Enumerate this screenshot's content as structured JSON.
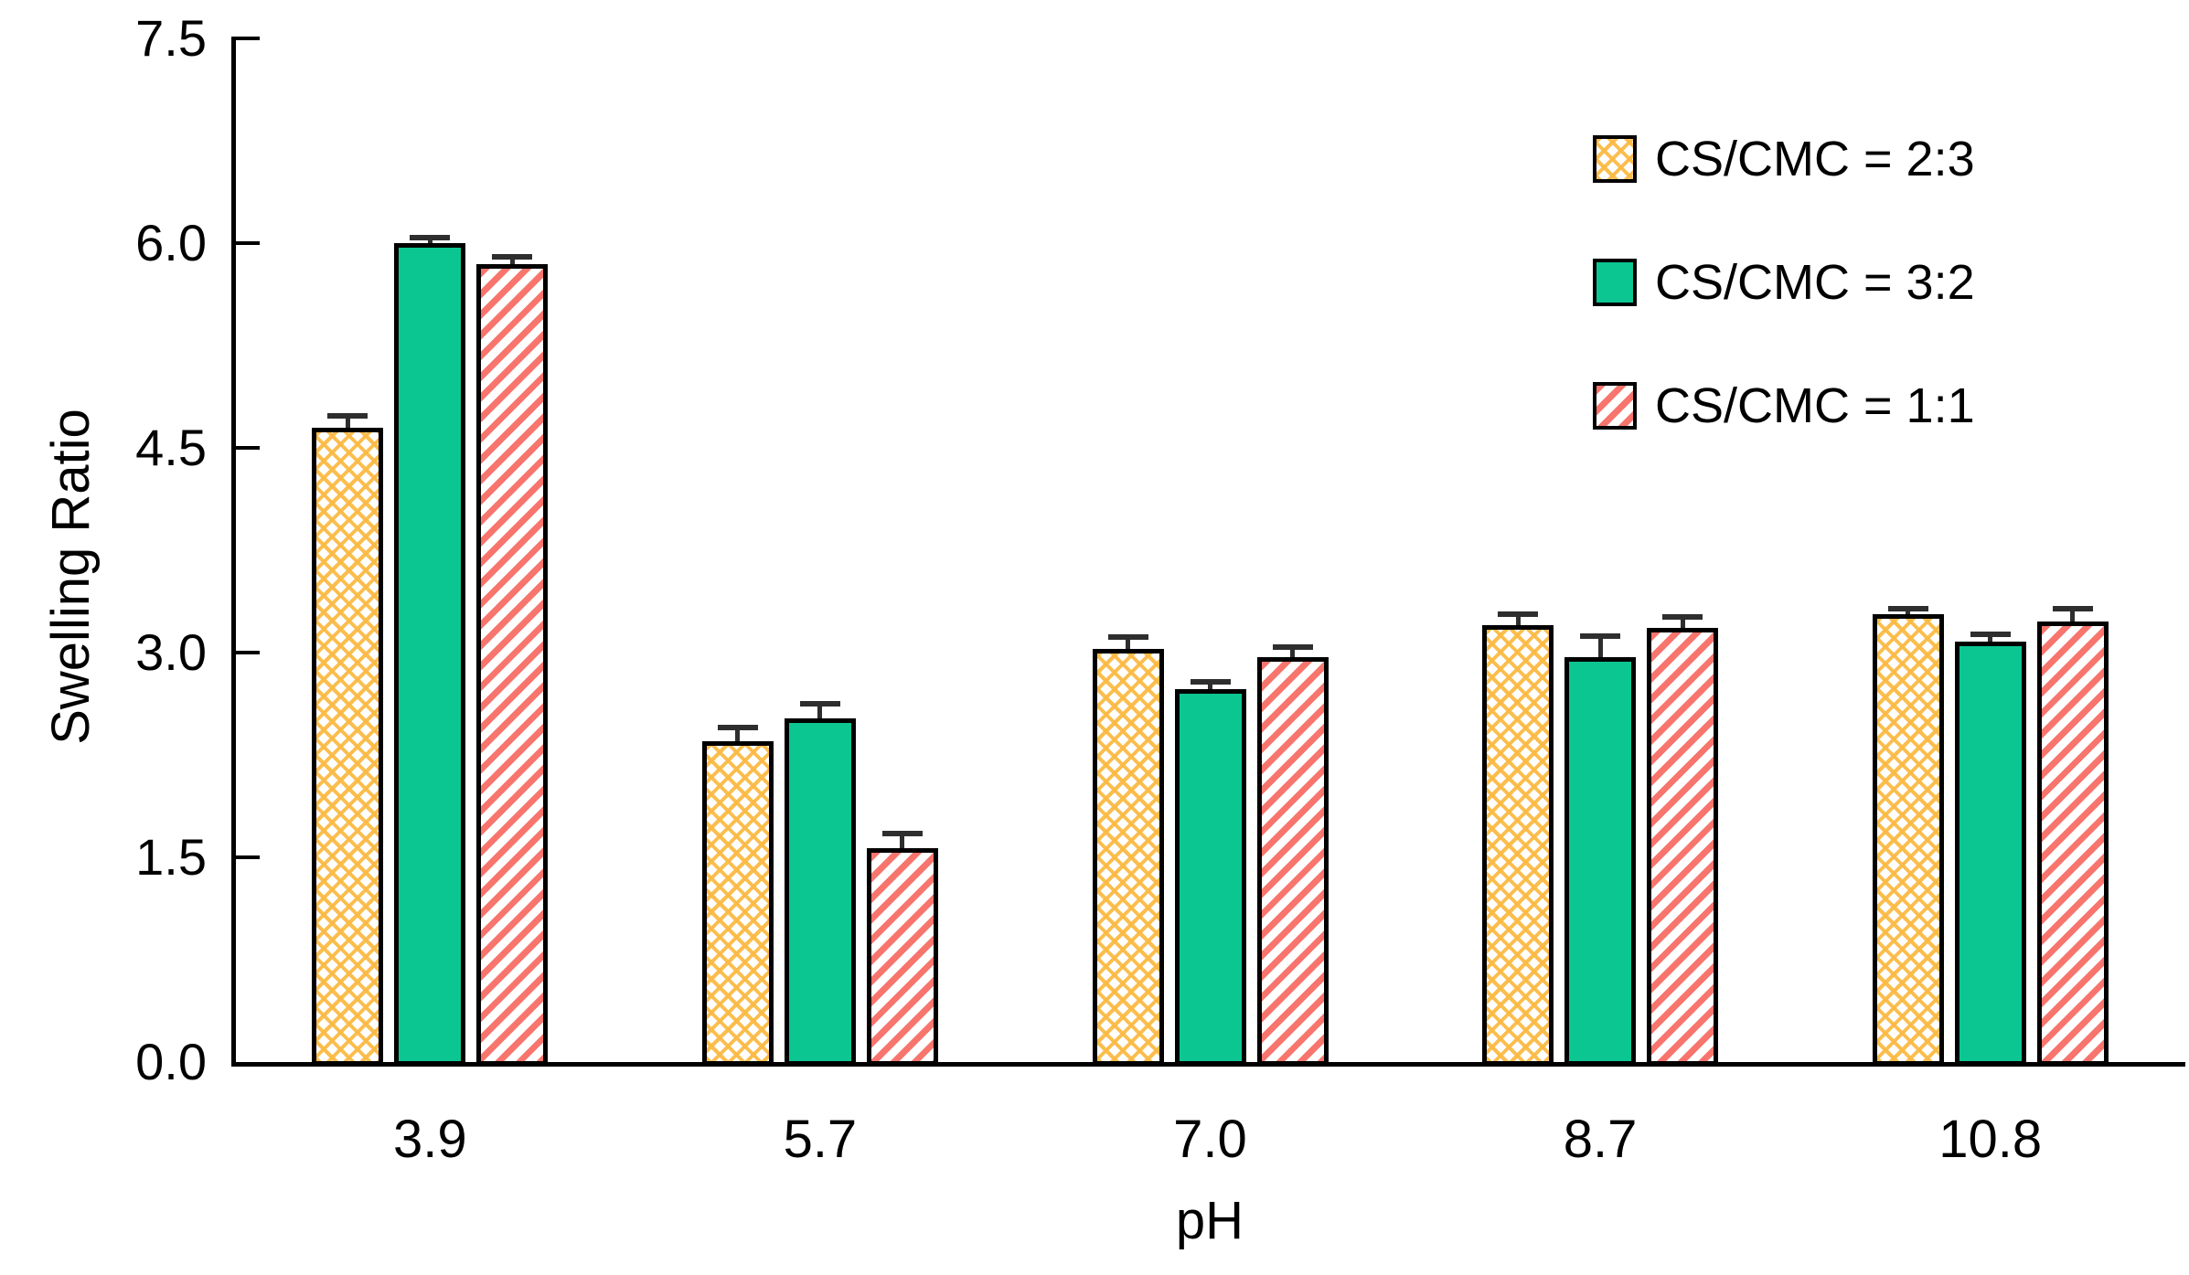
{
  "chart_data": {
    "type": "bar",
    "title": "",
    "xlabel": "pH",
    "ylabel": "Swelling Ratio",
    "categories": [
      "3.9",
      "5.7",
      "7.0",
      "8.7",
      "10.8"
    ],
    "series": [
      {
        "name": "CS/CMC = 2:3",
        "pattern": "diamond-lattice",
        "color": "#FBBA45",
        "values": [
          4.65,
          2.35,
          3.03,
          3.2,
          3.28
        ],
        "errors_plus": [
          0.07,
          0.09,
          0.07,
          0.07,
          0.03
        ]
      },
      {
        "name": "CS/CMC = 3:2",
        "pattern": "solid",
        "color": "#0CC692",
        "values": [
          6.0,
          2.52,
          2.73,
          2.97,
          3.08
        ],
        "errors_plus": [
          0.03,
          0.09,
          0.04,
          0.14,
          0.04
        ]
      },
      {
        "name": "CS/CMC = 1:1",
        "pattern": "diagonal-stripes",
        "color": "#F8756E",
        "values": [
          5.85,
          1.57,
          2.97,
          3.18,
          3.23
        ],
        "errors_plus": [
          0.04,
          0.09,
          0.06,
          0.07,
          0.08
        ]
      }
    ],
    "y_ticks": [
      0.0,
      1.5,
      3.0,
      4.5,
      6.0,
      7.5
    ],
    "y_tick_labels": [
      "0.0",
      "1.5",
      "3.0",
      "4.5",
      "6.0",
      "7.5"
    ],
    "ylim": [
      0,
      7.5
    ],
    "grid": false,
    "legend_position": "top-right",
    "axis_color": "#000000",
    "error_bar_color": "#2E2E2E",
    "bar_border_color": "#000000"
  }
}
